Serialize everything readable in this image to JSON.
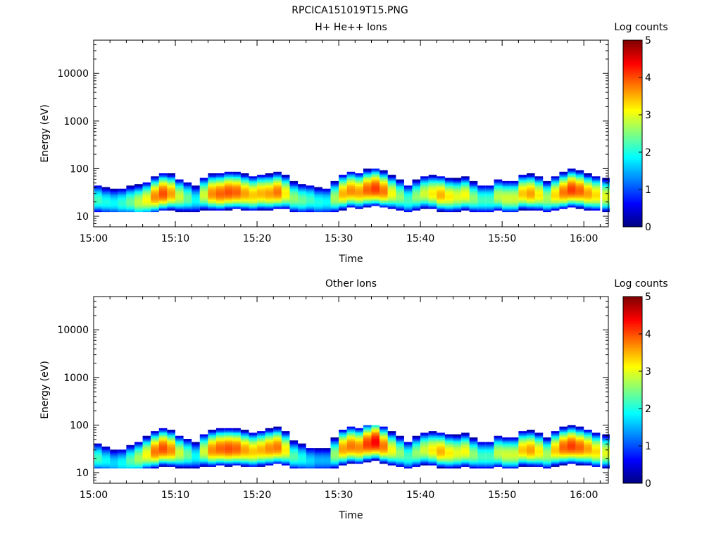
{
  "figure_title": "RPCICA151019T15.PNG",
  "chart_data": [
    {
      "type": "heatmap",
      "title": "H+ He++ Ions",
      "xlabel": "Time",
      "ylabel": "Energy (eV)",
      "x_ticks": [
        "15:00",
        "15:10",
        "15:20",
        "15:30",
        "15:40",
        "15:50",
        "16:00"
      ],
      "x_range": [
        "15:00",
        "16:03"
      ],
      "y_scale": "log",
      "y_ticks": [
        "10",
        "100",
        "1000",
        "10000"
      ],
      "y_range": [
        6,
        50000
      ],
      "colorbar": {
        "label": "Log counts",
        "ticks": [
          "0",
          "1",
          "2",
          "3",
          "4",
          "5"
        ],
        "range": [
          0,
          5
        ],
        "colormap": "jet"
      },
      "time_minutes": [
        0,
        1,
        2,
        3,
        4,
        5,
        6,
        7,
        8,
        9,
        10,
        11,
        12,
        13,
        14,
        15,
        16,
        17,
        18,
        19,
        20,
        21,
        22,
        23,
        24,
        25,
        26,
        27,
        28,
        29,
        30,
        31,
        32,
        33,
        34,
        35,
        36,
        37,
        38,
        39,
        40,
        41,
        42,
        43,
        44,
        45,
        46,
        47,
        48,
        49,
        50,
        51,
        52,
        53,
        54,
        55,
        56,
        57,
        58,
        59,
        60,
        61,
        62
      ],
      "peak_energy_eV": [
        22,
        20,
        19,
        19,
        20,
        20,
        22,
        26,
        30,
        30,
        26,
        24,
        22,
        28,
        30,
        30,
        32,
        32,
        30,
        28,
        30,
        30,
        32,
        30,
        24,
        22,
        22,
        20,
        20,
        24,
        30,
        34,
        32,
        36,
        38,
        34,
        30,
        26,
        22,
        26,
        30,
        30,
        28,
        26,
        26,
        28,
        24,
        22,
        22,
        26,
        24,
        24,
        30,
        30,
        28,
        24,
        28,
        32,
        36,
        34,
        30,
        28,
        26
      ],
      "peak_log_counts": [
        2.2,
        2.0,
        1.9,
        2.1,
        2.4,
        2.8,
        3.1,
        3.7,
        4.0,
        3.6,
        2.9,
        2.4,
        1.9,
        2.9,
        3.7,
        3.9,
        4.0,
        3.9,
        3.6,
        3.4,
        3.5,
        3.6,
        3.8,
        3.2,
        2.6,
        2.4,
        2.2,
        2.0,
        1.9,
        2.7,
        3.5,
        3.7,
        3.6,
        3.9,
        4.1,
        3.8,
        3.1,
        2.6,
        2.2,
        2.6,
        2.9,
        3.2,
        3.5,
        3.2,
        3.0,
        3.1,
        2.6,
        2.2,
        2.2,
        2.8,
        2.9,
        2.9,
        3.4,
        3.6,
        3.2,
        2.7,
        3.3,
        3.8,
        4.1,
        3.9,
        3.6,
        3.3,
        3.0
      ]
    },
    {
      "type": "heatmap",
      "title": "Other Ions",
      "xlabel": "Time",
      "ylabel": "Energy (eV)",
      "x_ticks": [
        "15:00",
        "15:10",
        "15:20",
        "15:30",
        "15:40",
        "15:50",
        "16:00"
      ],
      "x_range": [
        "15:00",
        "16:03"
      ],
      "y_scale": "log",
      "y_ticks": [
        "10",
        "100",
        "1000",
        "10000"
      ],
      "y_range": [
        6,
        50000
      ],
      "colorbar": {
        "label": "Log counts",
        "ticks": [
          "0",
          "1",
          "2",
          "3",
          "4",
          "5"
        ],
        "range": [
          0,
          5
        ],
        "colormap": "jet"
      },
      "time_minutes": [
        0,
        1,
        2,
        3,
        4,
        5,
        6,
        7,
        8,
        9,
        10,
        11,
        12,
        13,
        14,
        15,
        16,
        17,
        18,
        19,
        20,
        21,
        22,
        23,
        24,
        25,
        26,
        27,
        28,
        29,
        30,
        31,
        32,
        33,
        34,
        35,
        36,
        37,
        38,
        39,
        40,
        41,
        42,
        43,
        44,
        45,
        46,
        47,
        48,
        49,
        50,
        51,
        52,
        53,
        54,
        55,
        56,
        57,
        58,
        59,
        60,
        61,
        62
      ],
      "peak_energy_eV": [
        20,
        18,
        16,
        16,
        18,
        20,
        24,
        28,
        32,
        30,
        26,
        24,
        22,
        28,
        30,
        32,
        32,
        32,
        30,
        28,
        30,
        32,
        34,
        30,
        22,
        20,
        18,
        18,
        18,
        24,
        32,
        36,
        34,
        40,
        44,
        36,
        30,
        26,
        22,
        26,
        30,
        30,
        28,
        26,
        26,
        28,
        24,
        22,
        22,
        26,
        24,
        24,
        30,
        30,
        28,
        24,
        30,
        34,
        36,
        34,
        32,
        28,
        26
      ],
      "peak_log_counts": [
        2.2,
        1.9,
        1.7,
        1.9,
        2.3,
        2.7,
        3.1,
        3.8,
        4.0,
        3.7,
        2.9,
        2.4,
        1.9,
        2.9,
        3.7,
        3.9,
        4.0,
        3.9,
        3.6,
        3.4,
        3.5,
        3.7,
        3.8,
        3.2,
        2.3,
        2.0,
        1.7,
        1.5,
        1.5,
        2.6,
        3.6,
        3.8,
        3.7,
        4.1,
        4.4,
        3.8,
        3.1,
        2.6,
        2.2,
        2.6,
        2.9,
        3.2,
        3.5,
        3.2,
        3.0,
        3.1,
        2.6,
        2.2,
        2.2,
        2.8,
        2.9,
        2.9,
        3.4,
        3.6,
        3.2,
        2.7,
        3.4,
        3.9,
        4.1,
        3.9,
        3.6,
        3.3,
        3.0
      ]
    }
  ]
}
